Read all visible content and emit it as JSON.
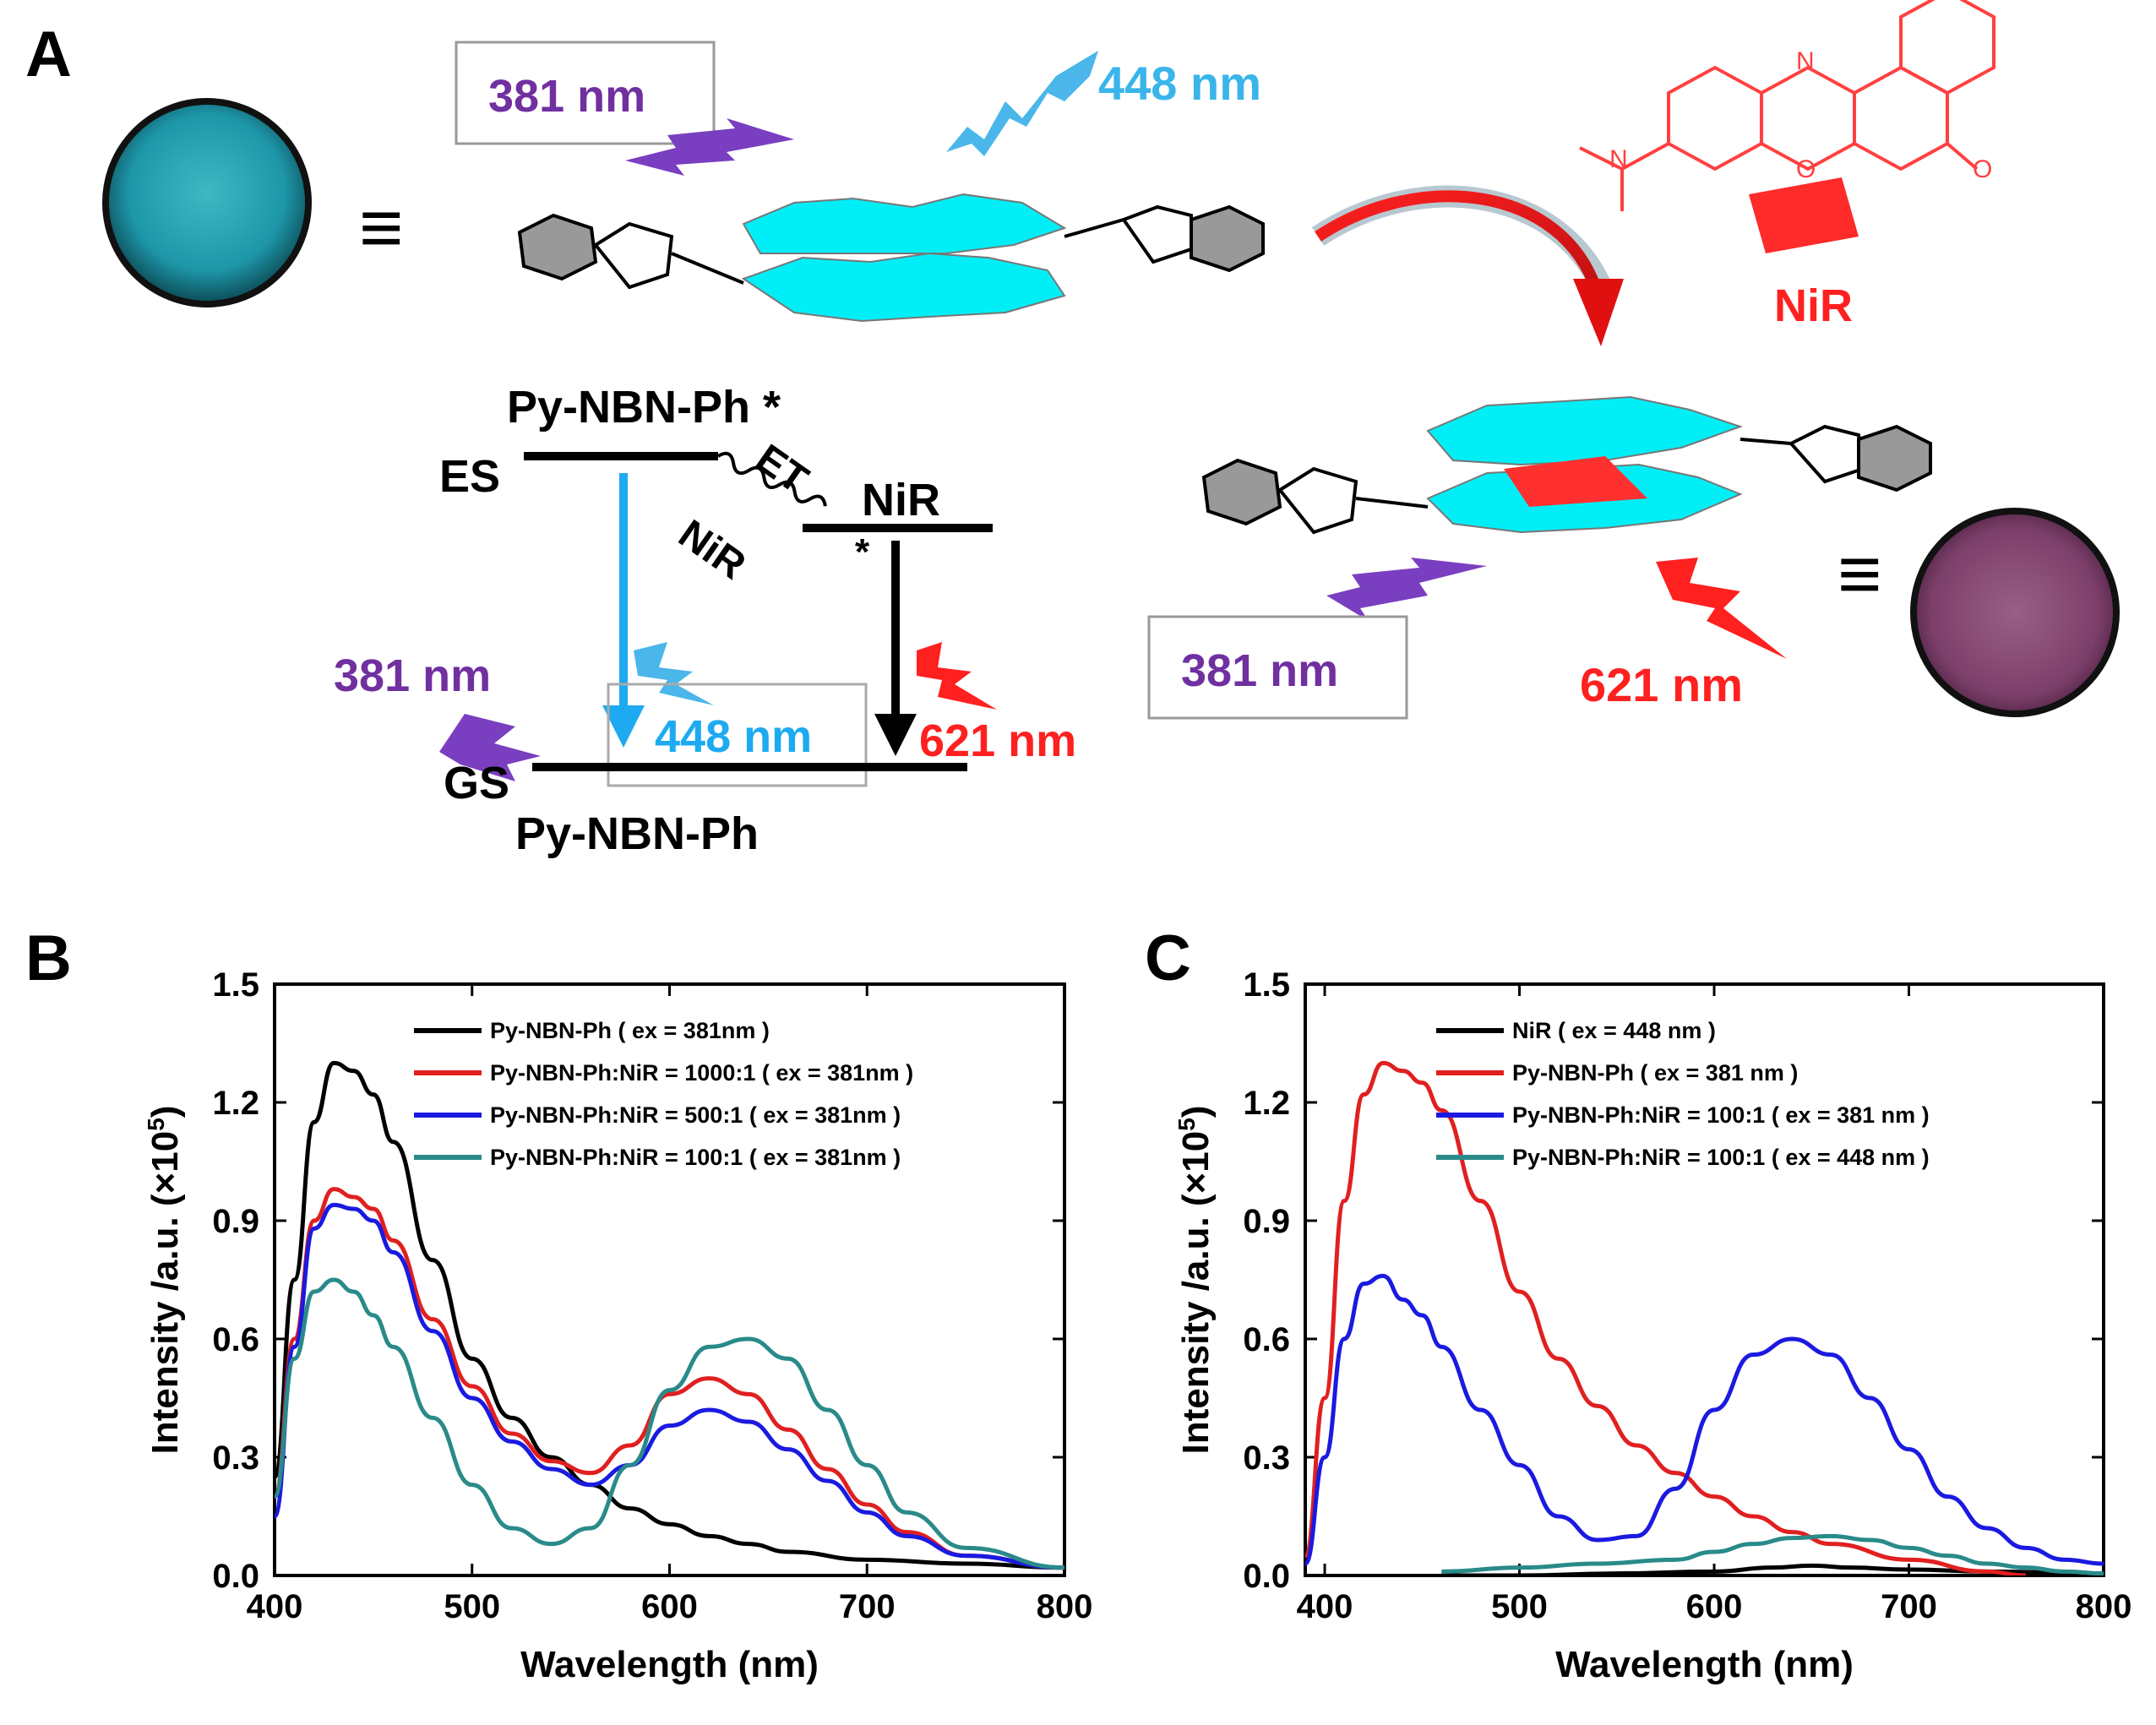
{
  "panels": {
    "A": {
      "letter": "A",
      "wavelengths": {
        "excitation_top": "381 nm",
        "emission_blue_top": "448 nm",
        "excitation_bottom_right": "381 nm",
        "emission_red_right": "621 nm",
        "diagram_excitation": "381 nm",
        "diagram_blue": "448 nm",
        "diagram_red": "621 nm"
      },
      "labels": {
        "nir_top": "NiR",
        "excited_donor": "Py-NBN-Ph *",
        "es": "ES",
        "gs": "GS",
        "ground_donor": "Py-NBN-Ph",
        "et": "ET",
        "nir_et": "NiR",
        "nir_level": "NiR",
        "star": "*",
        "equiv": "≡"
      },
      "colors": {
        "purple": "#7030a0",
        "blue": "#1eaaf0",
        "red": "#ff2020",
        "cyan": "#00e5f0"
      }
    },
    "B": {
      "letter": "B"
    },
    "C": {
      "letter": "C"
    }
  },
  "chart_data": [
    {
      "panel": "B",
      "type": "line",
      "xlabel": "Wavelength (nm)",
      "ylabel": "Intensity /a.u. (×10",
      "ylabel_exp": "5",
      "ylabel_close": ")",
      "xlim": [
        400,
        800
      ],
      "ylim": [
        0.0,
        1.5
      ],
      "xticks": [
        "400",
        "500",
        "600",
        "700",
        "800"
      ],
      "yticks": [
        "0.0",
        "0.3",
        "0.6",
        "0.9",
        "1.2",
        "1.5"
      ],
      "legend_position": "top-right",
      "series": [
        {
          "name": "Py-NBN-Ph ( ex = 381nm )",
          "color": "#000000",
          "x": [
            400,
            410,
            420,
            430,
            440,
            450,
            460,
            480,
            500,
            520,
            540,
            560,
            580,
            600,
            620,
            640,
            660,
            700,
            750,
            800
          ],
          "y": [
            0.25,
            0.75,
            1.15,
            1.3,
            1.28,
            1.22,
            1.1,
            0.8,
            0.55,
            0.4,
            0.3,
            0.23,
            0.17,
            0.13,
            0.1,
            0.08,
            0.06,
            0.04,
            0.03,
            0.02
          ]
        },
        {
          "name": "Py-NBN-Ph:NiR = 1000:1 ( ex = 381nm )",
          "color": "#e02020",
          "x": [
            400,
            410,
            420,
            430,
            440,
            450,
            460,
            480,
            500,
            520,
            540,
            560,
            580,
            600,
            620,
            640,
            660,
            680,
            700,
            720,
            750,
            800
          ],
          "y": [
            0.2,
            0.6,
            0.9,
            0.98,
            0.96,
            0.93,
            0.85,
            0.65,
            0.48,
            0.36,
            0.29,
            0.26,
            0.33,
            0.46,
            0.5,
            0.46,
            0.37,
            0.27,
            0.18,
            0.11,
            0.05,
            0.02
          ]
        },
        {
          "name": "Py-NBN-Ph:NiR = 500:1 ( ex = 381nm )",
          "color": "#1a1ae0",
          "x": [
            400,
            410,
            420,
            430,
            440,
            450,
            460,
            480,
            500,
            520,
            540,
            560,
            580,
            600,
            620,
            640,
            660,
            680,
            700,
            720,
            750,
            800
          ],
          "y": [
            0.15,
            0.58,
            0.88,
            0.94,
            0.93,
            0.9,
            0.82,
            0.62,
            0.45,
            0.34,
            0.27,
            0.23,
            0.28,
            0.38,
            0.42,
            0.39,
            0.32,
            0.24,
            0.16,
            0.1,
            0.05,
            0.02
          ]
        },
        {
          "name": "Py-NBN-Ph:NiR = 100:1 ( ex = 381nm )",
          "color": "#2a8a8a",
          "x": [
            400,
            410,
            420,
            430,
            440,
            450,
            460,
            480,
            500,
            520,
            540,
            560,
            580,
            600,
            620,
            640,
            660,
            680,
            700,
            720,
            750,
            800
          ],
          "y": [
            0.2,
            0.55,
            0.72,
            0.75,
            0.72,
            0.66,
            0.58,
            0.4,
            0.23,
            0.12,
            0.08,
            0.12,
            0.28,
            0.47,
            0.58,
            0.6,
            0.55,
            0.42,
            0.28,
            0.16,
            0.07,
            0.02
          ]
        }
      ]
    },
    {
      "panel": "C",
      "type": "line",
      "xlabel": "Wavelength (nm)",
      "ylabel": "Intensity /a.u. (×10",
      "ylabel_exp": "5",
      "ylabel_close": ")",
      "xlim": [
        390,
        800
      ],
      "ylim": [
        0.0,
        1.5
      ],
      "xticks": [
        "400",
        "500",
        "600",
        "700",
        "800"
      ],
      "yticks": [
        "0.0",
        "0.3",
        "0.6",
        "0.9",
        "1.2",
        "1.5"
      ],
      "legend_position": "top-right",
      "series": [
        {
          "name": "NiR ( ex = 448 nm )",
          "color": "#000000",
          "x": [
            460,
            500,
            550,
            600,
            630,
            650,
            670,
            700,
            740,
            800
          ],
          "y": [
            0.0,
            0.0,
            0.005,
            0.01,
            0.02,
            0.025,
            0.02,
            0.015,
            0.01,
            0.005
          ]
        },
        {
          "name": "Py-NBN-Ph ( ex = 381 nm )",
          "color": "#e02020",
          "x": [
            390,
            400,
            410,
            420,
            430,
            440,
            450,
            460,
            480,
            500,
            520,
            540,
            560,
            580,
            600,
            620,
            640,
            660,
            700,
            740,
            760
          ],
          "y": [
            0.05,
            0.45,
            0.95,
            1.22,
            1.3,
            1.28,
            1.25,
            1.18,
            0.95,
            0.72,
            0.55,
            0.43,
            0.33,
            0.26,
            0.2,
            0.15,
            0.11,
            0.08,
            0.04,
            0.01,
            0.0
          ]
        },
        {
          "name": "Py-NBN-Ph:NiR = 100:1 ( ex = 381 nm )",
          "color": "#1a1ae0",
          "x": [
            390,
            400,
            410,
            420,
            430,
            440,
            450,
            460,
            480,
            500,
            520,
            540,
            560,
            580,
            600,
            620,
            640,
            660,
            680,
            700,
            720,
            740,
            760,
            780,
            800
          ],
          "y": [
            0.03,
            0.3,
            0.6,
            0.74,
            0.76,
            0.7,
            0.66,
            0.58,
            0.42,
            0.28,
            0.15,
            0.09,
            0.1,
            0.22,
            0.42,
            0.56,
            0.6,
            0.56,
            0.45,
            0.32,
            0.2,
            0.12,
            0.07,
            0.04,
            0.03
          ]
        },
        {
          "name": "Py-NBN-Ph:NiR = 100:1 ( ex = 448 nm )",
          "color": "#2a8a8a",
          "x": [
            460,
            500,
            540,
            580,
            600,
            620,
            640,
            660,
            680,
            700,
            720,
            740,
            760,
            780,
            800
          ],
          "y": [
            0.01,
            0.02,
            0.03,
            0.04,
            0.06,
            0.08,
            0.095,
            0.1,
            0.09,
            0.07,
            0.05,
            0.03,
            0.02,
            0.01,
            0.005
          ]
        }
      ]
    }
  ]
}
